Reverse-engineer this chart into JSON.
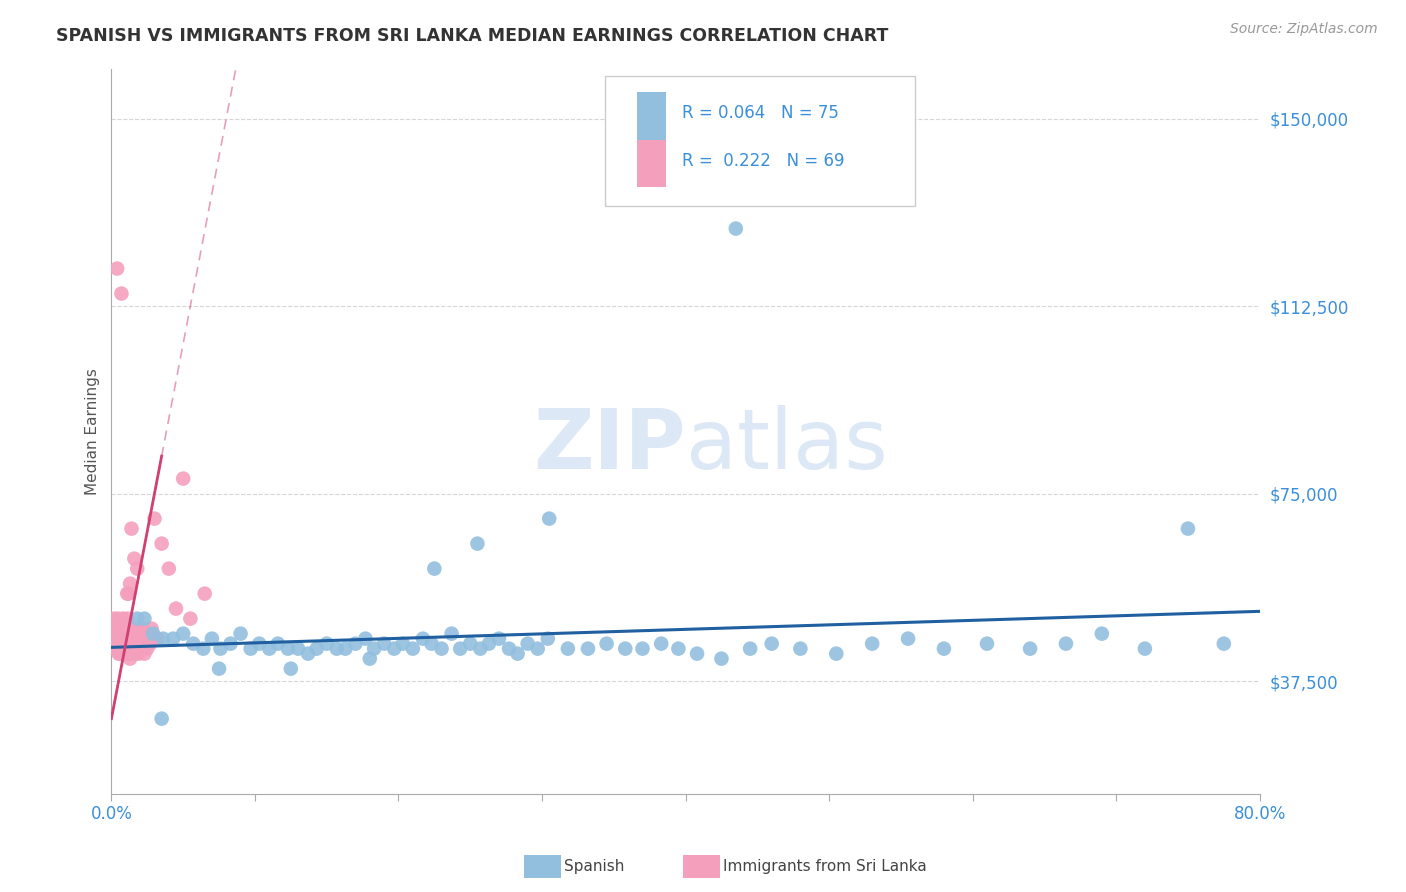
{
  "title": "SPANISH VS IMMIGRANTS FROM SRI LANKA MEDIAN EARNINGS CORRELATION CHART",
  "source": "Source: ZipAtlas.com",
  "ylabel": "Median Earnings",
  "y_ticks": [
    37500,
    75000,
    112500,
    150000
  ],
  "y_tick_labels": [
    "$37,500",
    "$75,000",
    "$112,500",
    "$150,000"
  ],
  "x_min": 0.0,
  "x_max": 80.0,
  "y_min": 15000,
  "y_max": 160000,
  "legend_R_blue": "0.064",
  "legend_N_blue": "75",
  "legend_R_pink": "0.222",
  "legend_N_pink": "69",
  "blue_color": "#92bfde",
  "blue_line_color": "#2060a0",
  "pink_color": "#f4a0bc",
  "pink_line_color": "#d04070",
  "watermark_color": "#dce8f5",
  "background_color": "#ffffff",
  "grid_color": "#cccccc",
  "blue_x": [
    1.8,
    2.3,
    2.9,
    3.6,
    4.3,
    5.0,
    5.7,
    6.4,
    7.0,
    7.6,
    8.3,
    9.0,
    9.7,
    10.3,
    11.0,
    11.6,
    12.3,
    13.0,
    13.7,
    14.3,
    15.0,
    15.7,
    16.3,
    17.0,
    17.7,
    18.3,
    19.0,
    19.7,
    20.3,
    21.0,
    21.7,
    22.3,
    23.0,
    23.7,
    24.3,
    25.0,
    25.7,
    26.3,
    27.0,
    27.7,
    28.3,
    29.0,
    29.7,
    30.4,
    31.8,
    33.2,
    34.5,
    35.8,
    37.0,
    38.3,
    39.5,
    40.8,
    42.5,
    44.5,
    46.0,
    48.0,
    50.5,
    53.0,
    55.5,
    58.0,
    61.0,
    64.0,
    66.5,
    69.0,
    72.0,
    75.0,
    77.5,
    43.5,
    30.5,
    25.5,
    22.5,
    18.0,
    12.5,
    7.5,
    3.5
  ],
  "blue_y": [
    50000,
    50000,
    47000,
    46000,
    46000,
    47000,
    45000,
    44000,
    46000,
    44000,
    45000,
    47000,
    44000,
    45000,
    44000,
    45000,
    44000,
    44000,
    43000,
    44000,
    45000,
    44000,
    44000,
    45000,
    46000,
    44000,
    45000,
    44000,
    45000,
    44000,
    46000,
    45000,
    44000,
    47000,
    44000,
    45000,
    44000,
    45000,
    46000,
    44000,
    43000,
    45000,
    44000,
    46000,
    44000,
    44000,
    45000,
    44000,
    44000,
    45000,
    44000,
    43000,
    42000,
    44000,
    45000,
    44000,
    43000,
    45000,
    46000,
    44000,
    45000,
    44000,
    45000,
    47000,
    44000,
    68000,
    45000,
    128000,
    70000,
    65000,
    60000,
    42000,
    40000,
    40000,
    30000
  ],
  "pink_x": [
    0.1,
    0.15,
    0.2,
    0.25,
    0.3,
    0.35,
    0.4,
    0.45,
    0.5,
    0.55,
    0.6,
    0.65,
    0.7,
    0.75,
    0.8,
    0.85,
    0.9,
    0.95,
    1.0,
    1.05,
    1.1,
    1.15,
    1.2,
    1.25,
    1.3,
    1.35,
    1.4,
    1.45,
    1.5,
    1.55,
    1.6,
    1.65,
    1.7,
    1.75,
    1.8,
    1.85,
    1.9,
    1.95,
    2.0,
    2.1,
    2.2,
    2.3,
    2.5,
    2.7,
    3.0,
    3.5,
    4.0,
    5.0,
    6.5,
    1.0,
    1.2,
    1.5,
    1.8,
    2.2,
    0.5,
    0.8,
    0.6,
    0.9,
    1.1,
    1.3,
    1.6,
    2.0,
    2.8,
    3.2,
    4.5,
    5.5,
    0.4,
    0.7,
    1.4
  ],
  "pink_y": [
    45000,
    48000,
    50000,
    47000,
    44000,
    48000,
    46000,
    50000,
    46000,
    48000,
    44000,
    46000,
    45000,
    44000,
    50000,
    48000,
    46000,
    44000,
    43000,
    45000,
    55000,
    46000,
    44000,
    43000,
    42000,
    44000,
    48000,
    46000,
    45000,
    44000,
    43000,
    45000,
    44000,
    46000,
    48000,
    44000,
    43000,
    45000,
    45000,
    44000,
    46000,
    43000,
    44000,
    45000,
    70000,
    65000,
    60000,
    78000,
    55000,
    43000,
    55000,
    43000,
    60000,
    48000,
    43000,
    45000,
    43000,
    47000,
    50000,
    57000,
    62000,
    47000,
    48000,
    46000,
    52000,
    50000,
    120000,
    115000,
    68000
  ]
}
